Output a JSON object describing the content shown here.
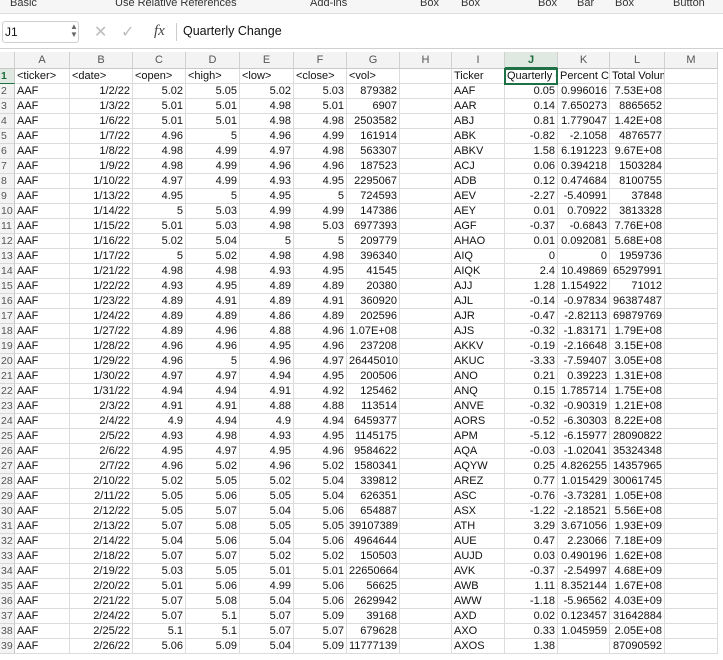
{
  "toolbar": [
    "Basic",
    "Use Relative References",
    "Add-ins",
    "Box",
    "Box",
    "Box",
    "Bar",
    "Box",
    "Button"
  ],
  "name_box": "J1",
  "formula_label": "fx",
  "formula": "Quarterly Change",
  "column_headers": [
    "A",
    "B",
    "C",
    "D",
    "E",
    "F",
    "G",
    "H",
    "I",
    "J",
    "K",
    "L",
    "M"
  ],
  "row_numbers": [
    "1",
    "2",
    "3",
    "4",
    "5",
    "6",
    "7",
    "8",
    "9",
    "10",
    "11",
    "12",
    "13",
    "14",
    "15",
    "16",
    "17",
    "18",
    "19",
    "20",
    "21",
    "22",
    "23",
    "24",
    "25",
    "26",
    "27",
    "28",
    "29",
    "30",
    "31",
    "32",
    "33",
    "34",
    "35",
    "36",
    "37",
    "38",
    "39"
  ],
  "rows": [
    [
      "<ticker>",
      "<date>",
      "<open>",
      "<high>",
      "<low>",
      "<close>",
      "<vol>",
      null,
      "Ticker",
      "Quarterly Change",
      "Percent Change",
      "Total Volume",
      null
    ],
    [
      "AAF",
      "1/2/22",
      "5.02",
      "5.05",
      "5.02",
      "5.03",
      "879382",
      null,
      "AAF",
      "0.05",
      "0.996016",
      "7.53E+08",
      null
    ],
    [
      "AAF",
      "1/3/22",
      "5.01",
      "5.01",
      "4.98",
      "5.01",
      "6907",
      null,
      "AAR",
      "0.14",
      "7.650273",
      "8865652",
      null
    ],
    [
      "AAF",
      "1/6/22",
      "5.01",
      "5.01",
      "4.98",
      "4.98",
      "2503582",
      null,
      "ABJ",
      "0.81",
      "1.779047",
      "1.42E+08",
      null
    ],
    [
      "AAF",
      "1/7/22",
      "4.96",
      "5",
      "4.96",
      "4.99",
      "161914",
      null,
      "ABK",
      "-0.82",
      "-2.1058",
      "4876577",
      null
    ],
    [
      "AAF",
      "1/8/22",
      "4.98",
      "4.99",
      "4.97",
      "4.98",
      "563307",
      null,
      "ABKV",
      "1.58",
      "6.191223",
      "9.67E+08",
      null
    ],
    [
      "AAF",
      "1/9/22",
      "4.98",
      "4.99",
      "4.96",
      "4.96",
      "187523",
      null,
      "ACJ",
      "0.06",
      "0.394218",
      "1503284",
      null
    ],
    [
      "AAF",
      "1/10/22",
      "4.97",
      "4.99",
      "4.93",
      "4.95",
      "2295067",
      null,
      "ADB",
      "0.12",
      "0.474684",
      "8100755",
      null
    ],
    [
      "AAF",
      "1/13/22",
      "4.95",
      "5",
      "4.95",
      "5",
      "724593",
      null,
      "AEV",
      "-2.27",
      "-5.40991",
      "37848",
      null
    ],
    [
      "AAF",
      "1/14/22",
      "5",
      "5.03",
      "4.99",
      "4.99",
      "147386",
      null,
      "AEY",
      "0.01",
      "0.70922",
      "3813328",
      null
    ],
    [
      "AAF",
      "1/15/22",
      "5.01",
      "5.03",
      "4.98",
      "5.03",
      "6977393",
      null,
      "AGF",
      "-0.37",
      "-0.6843",
      "7.76E+08",
      null
    ],
    [
      "AAF",
      "1/16/22",
      "5.02",
      "5.04",
      "5",
      "5",
      "209779",
      null,
      "AHAO",
      "0.01",
      "0.092081",
      "5.68E+08",
      null
    ],
    [
      "AAF",
      "1/17/22",
      "5",
      "5.02",
      "4.98",
      "4.98",
      "396340",
      null,
      "AIQ",
      "0",
      "0",
      "1959736",
      null
    ],
    [
      "AAF",
      "1/21/22",
      "4.98",
      "4.98",
      "4.93",
      "4.95",
      "41545",
      null,
      "AIQK",
      "2.4",
      "10.49869",
      "65297991",
      null
    ],
    [
      "AAF",
      "1/22/22",
      "4.93",
      "4.95",
      "4.89",
      "4.89",
      "20380",
      null,
      "AJJ",
      "1.28",
      "1.154922",
      "71012",
      null
    ],
    [
      "AAF",
      "1/23/22",
      "4.89",
      "4.91",
      "4.89",
      "4.91",
      "360920",
      null,
      "AJL",
      "-0.14",
      "-0.97834",
      "96387487",
      null
    ],
    [
      "AAF",
      "1/24/22",
      "4.89",
      "4.89",
      "4.86",
      "4.89",
      "202596",
      null,
      "AJR",
      "-0.47",
      "-2.82113",
      "69879769",
      null
    ],
    [
      "AAF",
      "1/27/22",
      "4.89",
      "4.96",
      "4.88",
      "4.96",
      "1.07E+08",
      null,
      "AJS",
      "-0.32",
      "-1.83171",
      "1.79E+08",
      null
    ],
    [
      "AAF",
      "1/28/22",
      "4.96",
      "4.96",
      "4.95",
      "4.96",
      "237208",
      null,
      "AKKV",
      "-0.19",
      "-2.16648",
      "3.15E+08",
      null
    ],
    [
      "AAF",
      "1/29/22",
      "4.96",
      "5",
      "4.96",
      "4.97",
      "26445010",
      null,
      "AKUC",
      "-3.33",
      "-7.59407",
      "3.05E+08",
      null
    ],
    [
      "AAF",
      "1/30/22",
      "4.97",
      "4.97",
      "4.94",
      "4.95",
      "200506",
      null,
      "ANO",
      "0.21",
      "0.39223",
      "1.31E+08",
      null
    ],
    [
      "AAF",
      "1/31/22",
      "4.94",
      "4.94",
      "4.91",
      "4.92",
      "125462",
      null,
      "ANQ",
      "0.15",
      "1.785714",
      "1.75E+08",
      null
    ],
    [
      "AAF",
      "2/3/22",
      "4.91",
      "4.91",
      "4.88",
      "4.88",
      "113514",
      null,
      "ANVE",
      "-0.32",
      "-0.90319",
      "1.21E+08",
      null
    ],
    [
      "AAF",
      "2/4/22",
      "4.9",
      "4.94",
      "4.9",
      "4.94",
      "6459377",
      null,
      "AORS",
      "-0.52",
      "-6.30303",
      "8.22E+08",
      null
    ],
    [
      "AAF",
      "2/5/22",
      "4.93",
      "4.98",
      "4.93",
      "4.95",
      "1145175",
      null,
      "APM",
      "-5.12",
      "-6.15977",
      "28090822",
      null
    ],
    [
      "AAF",
      "2/6/22",
      "4.95",
      "4.97",
      "4.95",
      "4.96",
      "9584622",
      null,
      "AQA",
      "-0.03",
      "-1.02041",
      "35324348",
      null
    ],
    [
      "AAF",
      "2/7/22",
      "4.96",
      "5.02",
      "4.96",
      "5.02",
      "1580341",
      null,
      "AQYW",
      "0.25",
      "4.826255",
      "14357965",
      null
    ],
    [
      "AAF",
      "2/10/22",
      "5.02",
      "5.05",
      "5.02",
      "5.04",
      "339812",
      null,
      "AREZ",
      "0.77",
      "1.015429",
      "30061745",
      null
    ],
    [
      "AAF",
      "2/11/22",
      "5.05",
      "5.06",
      "5.05",
      "5.04",
      "626351",
      null,
      "ASC",
      "-0.76",
      "-3.73281",
      "1.05E+08",
      null
    ],
    [
      "AAF",
      "2/12/22",
      "5.05",
      "5.07",
      "5.04",
      "5.06",
      "654887",
      null,
      "ASX",
      "-1.22",
      "-2.18521",
      "5.56E+08",
      null
    ],
    [
      "AAF",
      "2/13/22",
      "5.07",
      "5.08",
      "5.05",
      "5.05",
      "39107389",
      null,
      "ATH",
      "3.29",
      "3.671056",
      "1.93E+09",
      null
    ],
    [
      "AAF",
      "2/14/22",
      "5.04",
      "5.06",
      "5.04",
      "5.06",
      "4964644",
      null,
      "AUE",
      "0.47",
      "2.23066",
      "7.18E+09",
      null
    ],
    [
      "AAF",
      "2/18/22",
      "5.07",
      "5.07",
      "5.02",
      "5.02",
      "150503",
      null,
      "AUJD",
      "0.03",
      "0.490196",
      "1.62E+08",
      null
    ],
    [
      "AAF",
      "2/19/22",
      "5.03",
      "5.05",
      "5.01",
      "5.01",
      "22650664",
      null,
      "AVK",
      "-0.37",
      "-2.54997",
      "4.68E+09",
      null
    ],
    [
      "AAF",
      "2/20/22",
      "5.01",
      "5.06",
      "4.99",
      "5.06",
      "56625",
      null,
      "AWB",
      "1.11",
      "8.352144",
      "1.67E+08",
      null
    ],
    [
      "AAF",
      "2/21/22",
      "5.07",
      "5.08",
      "5.04",
      "5.06",
      "2629942",
      null,
      "AWW",
      "-1.18",
      "-5.96562",
      "4.03E+09",
      null
    ],
    [
      "AAF",
      "2/24/22",
      "5.07",
      "5.1",
      "5.07",
      "5.09",
      "39168",
      null,
      "AXD",
      "0.02",
      "0.123457",
      "31642884",
      null
    ],
    [
      "AAF",
      "2/25/22",
      "5.1",
      "5.1",
      "5.07",
      "5.07",
      "679628",
      null,
      "AXO",
      "0.33",
      "1.045959",
      "2.05E+08",
      null
    ],
    [
      "AAF",
      "2/26/22",
      "5.06",
      "5.09",
      "5.04",
      "5.09",
      "11777139",
      null,
      "AXOS",
      "1.38",
      null,
      "87090592",
      null
    ]
  ]
}
